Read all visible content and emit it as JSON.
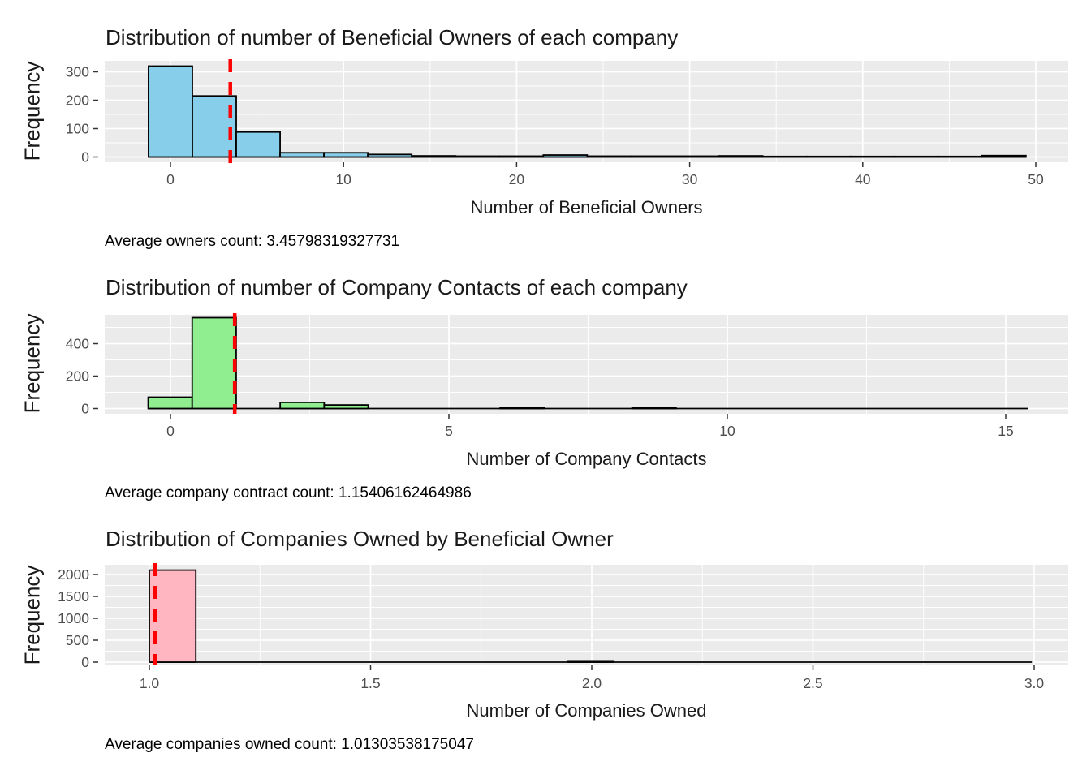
{
  "theme": {
    "background": "#FFFFFF",
    "panel_bg": "#EBEBEB",
    "grid_color": "#FFFFFF",
    "tick_text_color": "#4D4D4D",
    "tick_mark_color": "#333333",
    "text_color": "#1A1A1A"
  },
  "chart_data": [
    {
      "type": "bar",
      "subtype": "histogram",
      "title": "Distribution of number of Beneficial Owners of each company",
      "xlabel": "Number of Beneficial Owners",
      "ylabel": "Frequency",
      "caption": "Average owners count: 3.45798319327731",
      "mean": 3.45798319327731,
      "bar_fill": "#87CEEB",
      "bar_stroke": "#000000",
      "vline_color": "#FF0000",
      "vline_style": "dashed",
      "bin_start": -1.27,
      "bin_width": 2.535,
      "counts": [
        320,
        215,
        88,
        15,
        15,
        9,
        4,
        3,
        3,
        7,
        3,
        3,
        3,
        4,
        2,
        2,
        2,
        2,
        2,
        5
      ],
      "x_ticks": [
        {
          "v": 0,
          "label": "0"
        },
        {
          "v": 10,
          "label": "10"
        },
        {
          "v": 20,
          "label": "20"
        },
        {
          "v": 30,
          "label": "30"
        },
        {
          "v": 40,
          "label": "40"
        },
        {
          "v": 50,
          "label": "50"
        }
      ],
      "x_minor_ticks": [
        5,
        15,
        25,
        35,
        45
      ],
      "y_ticks": [
        {
          "v": 0,
          "label": "0"
        },
        {
          "v": 100,
          "label": "100"
        },
        {
          "v": 200,
          "label": "200"
        },
        {
          "v": 300,
          "label": "300"
        }
      ],
      "y_minor_ticks": [
        50,
        150,
        250
      ],
      "xlim": [
        -3.8,
        51.9
      ],
      "ylim": [
        -19,
        339
      ],
      "grid": true,
      "legend": "none"
    },
    {
      "type": "bar",
      "subtype": "histogram",
      "title": "Distribution of number of Company Contacts of each company",
      "xlabel": "Number of Company Contacts",
      "ylabel": "Frequency",
      "caption": "Average company contract count: 1.15406162464986",
      "mean": 1.15406162464986,
      "bar_fill": "#90EE90",
      "bar_stroke": "#000000",
      "vline_color": "#FF0000",
      "vline_style": "dashed",
      "bin_start": -0.4,
      "bin_width": 0.79,
      "counts": [
        70,
        560,
        0,
        38,
        22,
        0,
        0,
        0,
        3,
        0,
        0,
        6,
        0,
        0,
        0,
        0,
        0,
        0,
        0,
        0
      ],
      "x_ticks": [
        {
          "v": 0,
          "label": "0"
        },
        {
          "v": 5,
          "label": "5"
        },
        {
          "v": 10,
          "label": "10"
        },
        {
          "v": 15,
          "label": "15"
        }
      ],
      "x_minor_ticks": [
        2.5,
        7.5,
        12.5
      ],
      "y_ticks": [
        {
          "v": 0,
          "label": "0"
        },
        {
          "v": 200,
          "label": "200"
        },
        {
          "v": 400,
          "label": "400"
        }
      ],
      "y_minor_ticks": [
        100,
        300,
        500
      ],
      "xlim": [
        -1.2,
        16.1
      ],
      "ylim": [
        -32,
        578
      ],
      "grid": true,
      "legend": "none"
    },
    {
      "type": "bar",
      "subtype": "histogram",
      "title": "Distribution of Companies Owned by Beneficial Owner",
      "xlabel": "Number of Companies Owned",
      "ylabel": "Frequency",
      "caption": "Average companies owned count: 1.01303538175047",
      "mean": 1.01303538175047,
      "bar_fill": "#FFB6C1",
      "bar_stroke": "#000000",
      "vline_color": "#FF0000",
      "vline_style": "dashed",
      "bin_start": 1.0,
      "bin_width": 0.105,
      "counts": [
        2100,
        0,
        0,
        0,
        0,
        0,
        0,
        0,
        0,
        30,
        0,
        0,
        0,
        0,
        0,
        0,
        0,
        0,
        0
      ],
      "x_ticks": [
        {
          "v": 1.0,
          "label": "1.0"
        },
        {
          "v": 1.5,
          "label": "1.5"
        },
        {
          "v": 2.0,
          "label": "2.0"
        },
        {
          "v": 2.5,
          "label": "2.5"
        },
        {
          "v": 3.0,
          "label": "3.0"
        }
      ],
      "x_minor_ticks": [
        1.25,
        1.75,
        2.25,
        2.75
      ],
      "y_ticks": [
        {
          "v": 0,
          "label": "0"
        },
        {
          "v": 500,
          "label": "500"
        },
        {
          "v": 1000,
          "label": "1000"
        },
        {
          "v": 1500,
          "label": "1500"
        },
        {
          "v": 2000,
          "label": "2000"
        }
      ],
      "y_minor_ticks": [
        250,
        750,
        1250,
        1750
      ],
      "xlim": [
        0.9,
        3.08
      ],
      "ylim": [
        -120,
        2295
      ],
      "grid": true,
      "legend": "none"
    }
  ]
}
